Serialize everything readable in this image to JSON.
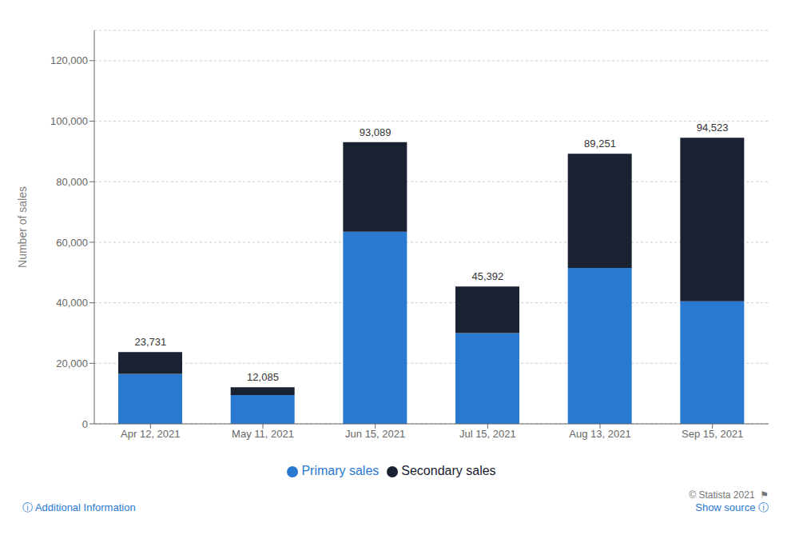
{
  "chart_data": {
    "type": "bar",
    "stacked": true,
    "ylabel": "Number of sales",
    "categories": [
      "Apr 12, 2021",
      "May 11, 2021",
      "Jun 15, 2021",
      "Jul 15, 2021",
      "Aug 13, 2021",
      "Sep 15, 2021"
    ],
    "series": [
      {
        "name": "Primary sales",
        "color": "#2979d0",
        "values": [
          16500,
          9500,
          63500,
          30000,
          51500,
          40500
        ]
      },
      {
        "name": "Secondary sales",
        "color": "#1a2130",
        "values": [
          7231,
          2585,
          29589,
          15392,
          37751,
          54023
        ]
      }
    ],
    "totals": [
      23731,
      12085,
      93089,
      45392,
      89251,
      94523
    ],
    "total_labels": [
      "23,731",
      "12,085",
      "93,089",
      "45,392",
      "89,251",
      "94,523"
    ],
    "ylim": [
      0,
      130000
    ],
    "yticks": [
      0,
      {
        "value": 20000,
        "label": "20,000"
      },
      {
        "value": 40000,
        "label": "40,000"
      },
      {
        "value": 60000,
        "label": "60,000"
      },
      {
        "value": 80000,
        "label": "80,000"
      },
      {
        "value": 100000,
        "label": "100,000"
      },
      {
        "value": 120000,
        "label": "120,000"
      }
    ],
    "grid": true,
    "legend": "bottom",
    "annotations": [
      "ⓘ Additional Information",
      "Show source ⓘ",
      "© Statista 2021  ⚑"
    ]
  }
}
